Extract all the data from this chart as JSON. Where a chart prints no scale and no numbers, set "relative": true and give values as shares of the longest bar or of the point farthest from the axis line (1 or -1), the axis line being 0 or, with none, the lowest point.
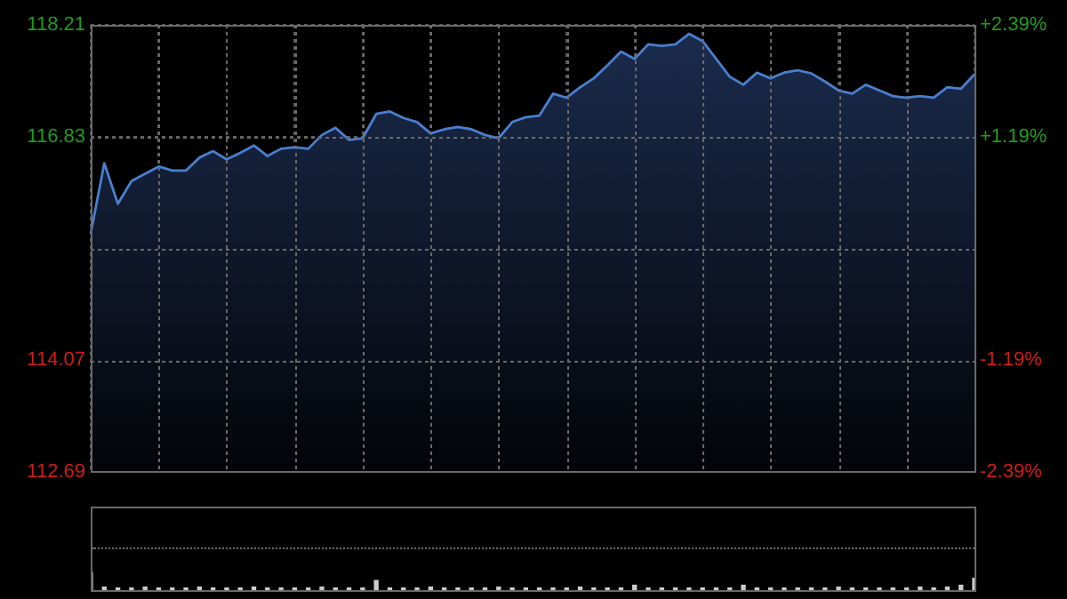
{
  "chart_data": [
    {
      "type": "area",
      "categories": [
        null,
        null,
        null,
        null,
        null,
        null,
        null,
        null,
        null,
        null,
        null,
        null,
        null,
        null,
        null,
        null,
        null,
        null,
        null,
        null,
        null,
        null,
        null,
        null,
        null,
        null,
        null,
        null,
        null,
        null,
        null,
        null,
        null,
        null,
        null,
        null,
        null,
        null,
        null,
        null,
        null,
        null,
        null,
        null,
        null,
        null,
        null,
        null,
        null,
        null,
        null,
        null,
        null,
        null,
        null,
        null,
        null,
        null,
        null,
        null,
        null,
        null,
        null,
        null,
        null,
        null
      ],
      "series": [
        {
          "color": "#4a7fd0",
          "values": [
            115.63,
            116.5,
            116.0,
            116.28,
            116.37,
            116.46,
            116.41,
            116.41,
            116.57,
            116.65,
            116.55,
            116.63,
            116.72,
            116.59,
            116.68,
            116.7,
            116.68,
            116.85,
            116.94,
            116.79,
            116.81,
            117.11,
            117.14,
            117.06,
            117.01,
            116.87,
            116.92,
            116.95,
            116.92,
            116.85,
            116.81,
            117.01,
            117.07,
            117.09,
            117.36,
            117.31,
            117.44,
            117.55,
            117.71,
            117.88,
            117.79,
            117.97,
            117.95,
            117.97,
            118.1,
            118.01,
            117.79,
            117.57,
            117.47,
            117.62,
            117.55,
            117.62,
            117.65,
            117.61,
            117.51,
            117.4,
            117.36,
            117.47,
            117.4,
            117.33,
            117.31,
            117.33,
            117.31,
            117.44,
            117.42,
            117.6
          ]
        }
      ],
      "ylim": [
        112.69,
        118.21
      ],
      "yticks": [
        118.21,
        116.83,
        {
          "value": 115.45,
          "label": null
        },
        114.07,
        112.69
      ],
      "y2lim": [
        -2.39,
        2.39
      ],
      "y2ticks": [
        {
          "value": 2.39,
          "label": "+2.39%"
        },
        {
          "value": 1.19,
          "label": "+1.19%"
        },
        {
          "value": -1.19,
          "label": "-1.19%"
        },
        {
          "value": -2.39,
          "label": "-2.39%"
        }
      ],
      "grid": true
    },
    {
      "type": "bar",
      "relative": true,
      "categories": [
        null,
        null,
        null,
        null,
        null,
        null,
        null,
        null,
        null,
        null,
        null,
        null,
        null,
        null,
        null,
        null,
        null,
        null,
        null,
        null,
        null,
        null,
        null,
        null,
        null,
        null,
        null,
        null,
        null,
        null,
        null,
        null,
        null,
        null,
        null,
        null,
        null,
        null,
        null,
        null,
        null,
        null,
        null,
        null,
        null,
        null,
        null,
        null,
        null,
        null,
        null,
        null,
        null,
        null,
        null,
        null,
        null,
        null,
        null,
        null,
        null,
        null,
        null,
        null,
        null,
        null
      ],
      "values": [
        1,
        0.2,
        0.15,
        0.15,
        0.2,
        0.15,
        0.15,
        0.15,
        0.2,
        0.15,
        0.15,
        0.15,
        0.2,
        0.15,
        0.15,
        0.15,
        0.15,
        0.2,
        0.15,
        0.15,
        0.15,
        0.56,
        0.15,
        0.15,
        0.15,
        0.2,
        0.15,
        0.15,
        0.15,
        0.15,
        0.2,
        0.15,
        0.15,
        0.15,
        0.15,
        0.15,
        0.2,
        0.15,
        0.15,
        0.15,
        0.3,
        0.15,
        0.15,
        0.15,
        0.15,
        0.15,
        0.15,
        0.15,
        0.3,
        0.15,
        0.15,
        0.15,
        0.15,
        0.15,
        0.15,
        0.2,
        0.15,
        0.15,
        0.15,
        0.15,
        0.15,
        0.2,
        0.15,
        0.2,
        0.3,
        0.68
      ],
      "color": "#cccccc"
    }
  ]
}
